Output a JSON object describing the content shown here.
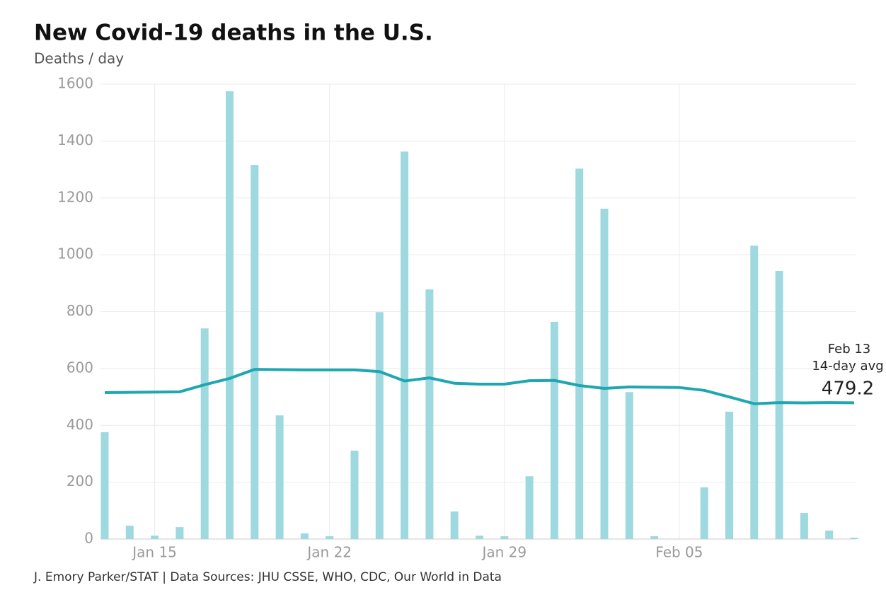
{
  "chart_data": {
    "type": "bar",
    "title": "New Covid-19 deaths in the U.S.",
    "subtitle": "Deaths / day",
    "source": "J. Emory Parker/STAT | Data Sources: JHU CSSE, WHO, CDC, Our World in Data",
    "categories": [
      null,
      null,
      "Jan 15",
      null,
      null,
      null,
      null,
      null,
      null,
      "Jan 22",
      null,
      null,
      null,
      null,
      null,
      null,
      "Jan 29",
      null,
      null,
      null,
      null,
      null,
      null,
      "Feb 05",
      null,
      null,
      null,
      null,
      null,
      null,
      null
    ],
    "series": [
      {
        "type": "bar",
        "color": "#9ed9df",
        "values": [
          376,
          47,
          12,
          42,
          741,
          1575,
          1316,
          435,
          20,
          10,
          311,
          798,
          1363,
          878,
          97,
          12,
          10,
          221,
          764,
          1303,
          1162,
          517,
          10,
          0,
          182,
          448,
          1032,
          943,
          92,
          30,
          5
        ]
      },
      {
        "type": "line",
        "color": "#1ea7b1",
        "values": [
          515,
          516,
          517,
          518,
          543,
          565,
          597,
          596,
          595,
          595,
          595,
          589,
          556,
          567,
          548,
          545,
          545,
          557,
          558,
          540,
          530,
          535,
          534,
          533,
          523,
          500,
          476,
          480,
          479,
          480,
          479.2
        ]
      }
    ],
    "annotation": {
      "date": "Feb 13",
      "label": "14-day avg"
    },
    "ylim": [
      0,
      1600
    ],
    "yticks": [
      0,
      200,
      400,
      600,
      800,
      1000,
      1200,
      1400,
      1600
    ],
    "grid": true
  }
}
